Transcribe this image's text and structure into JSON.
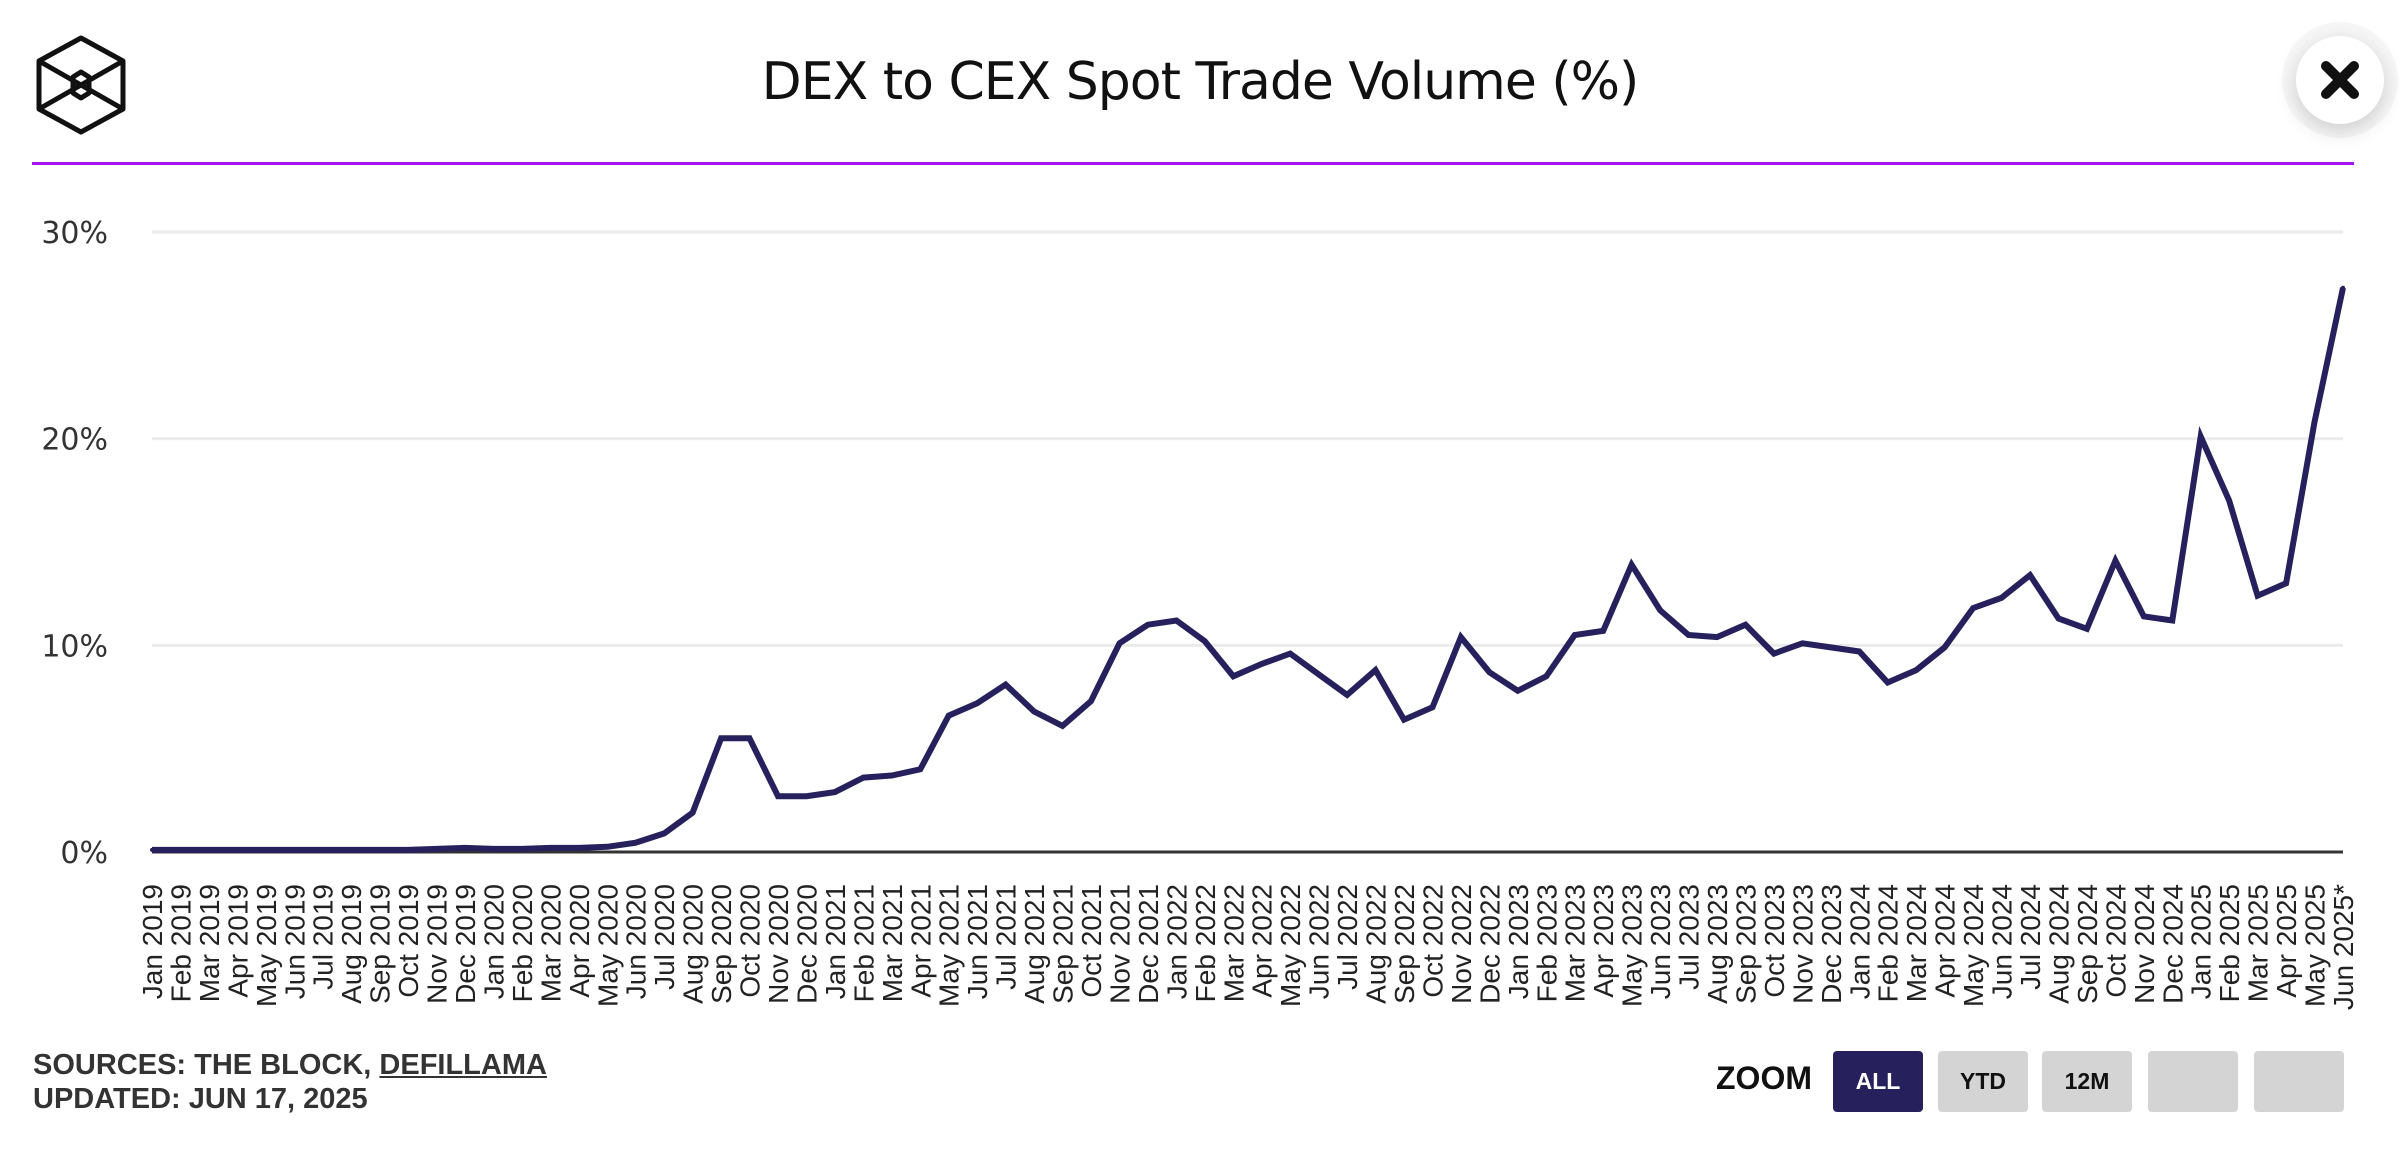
{
  "header": {
    "title": "DEX to CEX Spot Trade Volume (%)",
    "logo_icon": "the-block-cube-logo",
    "close_icon": "close-icon"
  },
  "colors": {
    "accent_rule": "#a812f0",
    "line": "#26215c",
    "active_button": "#26215c",
    "inactive_button": "#d4d4d4",
    "gridline": "#ebebeb"
  },
  "footer": {
    "sources_prefix": "SOURCES: THE BLOCK, ",
    "sources_link": "DEFILLAMA",
    "updated": "UPDATED: JUN 17, 2025"
  },
  "zoom": {
    "label": "ZOOM",
    "buttons": [
      {
        "label": "ALL",
        "active": true
      },
      {
        "label": "YTD",
        "active": false
      },
      {
        "label": "12M",
        "active": false
      },
      {
        "label": "",
        "active": false
      },
      {
        "label": "",
        "active": false
      }
    ]
  },
  "chart_data": {
    "type": "line",
    "title": "DEX to CEX Spot Trade Volume (%)",
    "xlabel": "",
    "ylabel": "",
    "ylim": [
      0,
      30
    ],
    "yticks": [
      0,
      10,
      20,
      30
    ],
    "ytick_labels": [
      "0%",
      "10%",
      "20%",
      "30%"
    ],
    "grid": true,
    "legend": "none",
    "x": [
      "Jan 2019",
      "Feb 2019",
      "Mar 2019",
      "Apr 2019",
      "May 2019",
      "Jun 2019",
      "Jul 2019",
      "Aug 2019",
      "Sep 2019",
      "Oct 2019",
      "Nov 2019",
      "Dec 2019",
      "Jan 2020",
      "Feb 2020",
      "Mar 2020",
      "Apr 2020",
      "May 2020",
      "Jun 2020",
      "Jul 2020",
      "Aug 2020",
      "Sep 2020",
      "Oct 2020",
      "Nov 2020",
      "Dec 2020",
      "Jan 2021",
      "Feb 2021",
      "Mar 2021",
      "Apr 2021",
      "May 2021",
      "Jun 2021",
      "Jul 2021",
      "Aug 2021",
      "Sep 2021",
      "Oct 2021",
      "Nov 2021",
      "Dec 2021",
      "Jan 2022",
      "Feb 2022",
      "Mar 2022",
      "Apr 2022",
      "May 2022",
      "Jun 2022",
      "Jul 2022",
      "Aug 2022",
      "Sep 2022",
      "Oct 2022",
      "Nov 2022",
      "Dec 2022",
      "Jan 2023",
      "Feb 2023",
      "Mar 2023",
      "Apr 2023",
      "May 2023",
      "Jun 2023",
      "Jul 2023",
      "Aug 2023",
      "Sep 2023",
      "Oct 2023",
      "Nov 2023",
      "Dec 2023",
      "Jan 2024",
      "Feb 2024",
      "Mar 2024",
      "Apr 2024",
      "May 2024",
      "Jun 2024",
      "Jul 2024",
      "Aug 2024",
      "Sep 2024",
      "Oct 2024",
      "Nov 2024",
      "Dec 2024",
      "Jan 2025",
      "Feb 2025",
      "Mar 2025",
      "Apr 2025",
      "May 2025",
      "Jun 2025*"
    ],
    "series": [
      {
        "name": "DEX to CEX Spot Trade Volume (%)",
        "values": [
          0.1,
          0.1,
          0.1,
          0.1,
          0.1,
          0.1,
          0.1,
          0.1,
          0.1,
          0.1,
          0.15,
          0.2,
          0.15,
          0.15,
          0.2,
          0.2,
          0.25,
          0.45,
          0.9,
          1.9,
          5.5,
          5.5,
          2.7,
          2.7,
          2.9,
          3.6,
          3.7,
          4.0,
          6.6,
          7.2,
          8.1,
          6.8,
          6.1,
          7.3,
          10.1,
          11.0,
          11.2,
          10.2,
          8.5,
          9.1,
          9.6,
          8.6,
          7.6,
          8.8,
          6.4,
          7.0,
          10.4,
          8.7,
          7.8,
          8.5,
          10.5,
          10.7,
          13.9,
          11.7,
          10.5,
          10.4,
          11.0,
          9.6,
          10.1,
          9.9,
          9.7,
          8.2,
          8.8,
          9.9,
          11.8,
          12.3,
          13.4,
          11.3,
          10.8,
          14.1,
          11.4,
          11.2,
          20.1,
          17.0,
          12.4,
          13.0,
          20.8,
          27.3
        ]
      }
    ]
  }
}
